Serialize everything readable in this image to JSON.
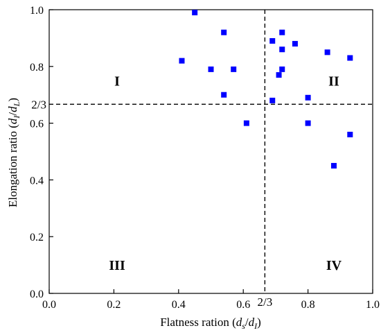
{
  "chart_data": {
    "type": "scatter",
    "xlabel": {
      "main": "Flatness ration (",
      "var1": "d",
      "sub1": "s",
      "slash": "/",
      "var2": "d",
      "sub2": "I",
      "close": ")"
    },
    "ylabel": {
      "main": "Elongation ratio (",
      "var1": "d",
      "sub1": "I",
      "slash": "/",
      "var2": "d",
      "sub2": "L",
      "close": ")"
    },
    "xlim": [
      0.0,
      1.0
    ],
    "ylim": [
      0.0,
      1.0
    ],
    "x_ticks": [
      0.0,
      0.2,
      0.4,
      0.6,
      0.8,
      1.0
    ],
    "y_ticks": [
      0.0,
      0.2,
      0.4,
      0.6,
      0.8,
      1.0
    ],
    "x_tick_labels": [
      "0.0",
      "0.2",
      "0.4",
      "0.6",
      "0.8",
      "1.0"
    ],
    "y_tick_labels": [
      "0.0",
      "0.2",
      "0.4",
      "0.6",
      "0.8",
      "1.0"
    ],
    "threshold_value": 0.6667,
    "threshold_label": "2/3",
    "grid": false,
    "marker_color": "#0000ff",
    "divider_color": "#000000",
    "quadrant_labels": [
      {
        "text": "I",
        "x": 0.21,
        "y": 0.75
      },
      {
        "text": "II",
        "x": 0.88,
        "y": 0.75
      },
      {
        "text": "III",
        "x": 0.21,
        "y": 0.1
      },
      {
        "text": "IV",
        "x": 0.88,
        "y": 0.1
      }
    ],
    "points": [
      {
        "x": 0.45,
        "y": 0.99
      },
      {
        "x": 0.54,
        "y": 0.92
      },
      {
        "x": 0.41,
        "y": 0.82
      },
      {
        "x": 0.5,
        "y": 0.79
      },
      {
        "x": 0.57,
        "y": 0.79
      },
      {
        "x": 0.54,
        "y": 0.7
      },
      {
        "x": 0.61,
        "y": 0.6
      },
      {
        "x": 0.69,
        "y": 0.89
      },
      {
        "x": 0.72,
        "y": 0.92
      },
      {
        "x": 0.72,
        "y": 0.86
      },
      {
        "x": 0.76,
        "y": 0.88
      },
      {
        "x": 0.72,
        "y": 0.79
      },
      {
        "x": 0.71,
        "y": 0.77
      },
      {
        "x": 0.69,
        "y": 0.68
      },
      {
        "x": 0.8,
        "y": 0.69
      },
      {
        "x": 0.8,
        "y": 0.6
      },
      {
        "x": 0.86,
        "y": 0.85
      },
      {
        "x": 0.93,
        "y": 0.83
      },
      {
        "x": 0.93,
        "y": 0.56
      },
      {
        "x": 0.88,
        "y": 0.45
      }
    ]
  }
}
